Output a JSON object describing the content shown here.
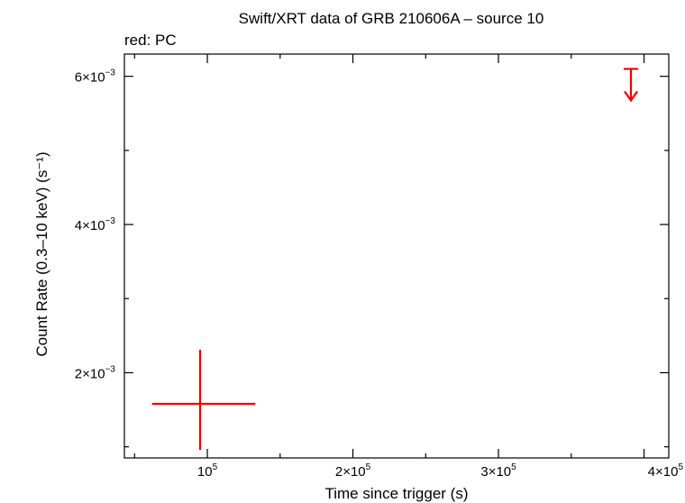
{
  "chart_data": {
    "type": "scatter",
    "title": "Swift/XRT data of GRB 210606A – source 10",
    "subtitle": "red: PC",
    "xlabel": "Time since trigger (s)",
    "ylabel": "Count Rate (0.3–10 keV) (s⁻¹)",
    "xlim": [
      43000,
      417000
    ],
    "ylim": [
      0.00085,
      0.0063
    ],
    "grid": false,
    "x_ticks": [
      {
        "value": 100000,
        "mant": "",
        "exp": "5"
      },
      {
        "value": 200000,
        "mant": "2×",
        "exp": "5"
      },
      {
        "value": 300000,
        "mant": "3×",
        "exp": "5"
      },
      {
        "value": 400000,
        "mant": "4×",
        "exp": "5"
      }
    ],
    "y_ticks": [
      {
        "value": 0.002,
        "mant": "2×",
        "exp": "−3"
      },
      {
        "value": 0.004,
        "mant": "4×",
        "exp": "−3"
      },
      {
        "value": 0.006,
        "mant": "6×",
        "exp": "−3"
      }
    ],
    "series": [
      {
        "color": "#ee0000",
        "points": [
          {
            "x": 95000,
            "x_err_lo": 33000,
            "x_err_hi": 38000,
            "y": 0.00158,
            "y_err_lo": 0.00062,
            "y_err_hi": 0.00073
          }
        ],
        "upper_limits": [
          {
            "x": 391000,
            "x_err_lo": 5000,
            "x_err_hi": 5000,
            "y": 0.0061
          }
        ]
      }
    ]
  }
}
